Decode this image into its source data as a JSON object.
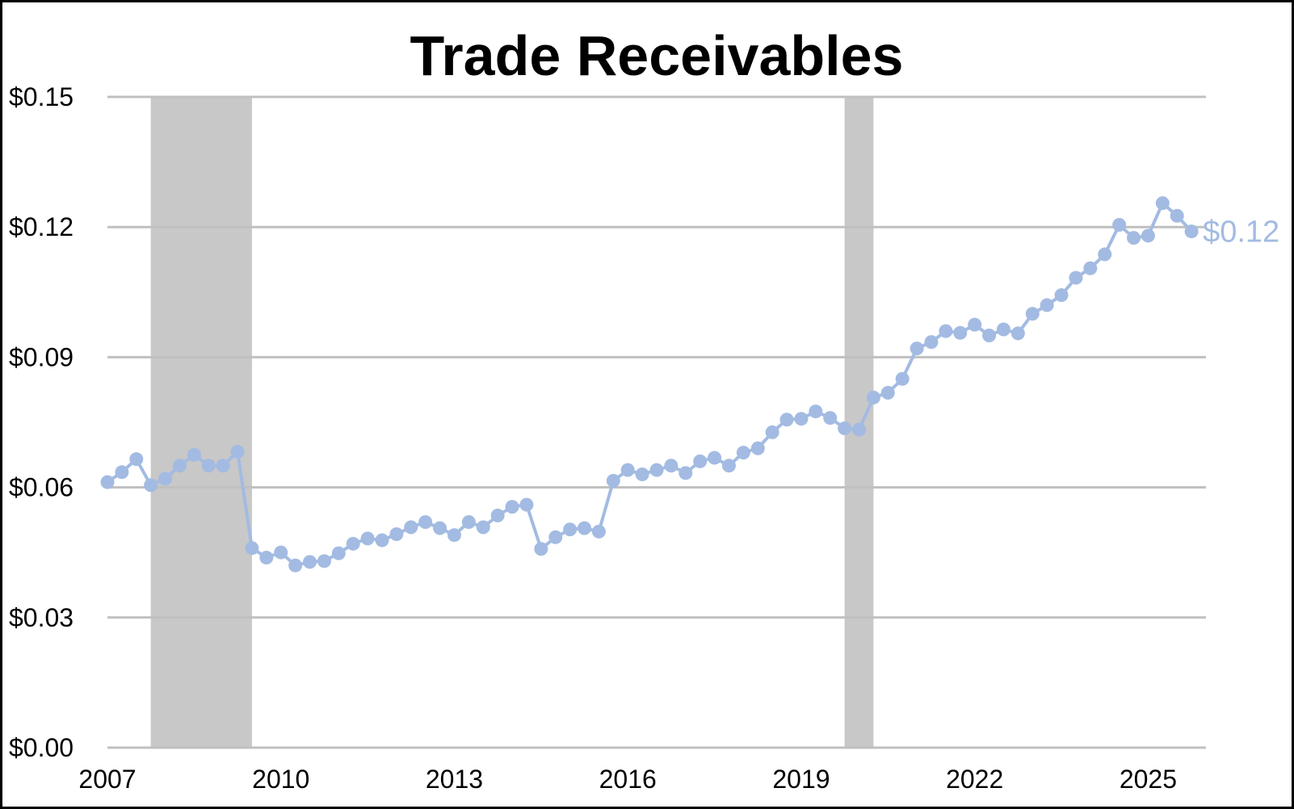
{
  "chart_data": {
    "type": "line",
    "title": "Trade Receivables",
    "xlabel": "",
    "ylabel": "",
    "ylim": [
      0,
      0.15
    ],
    "yticks": [
      0.0,
      0.03,
      0.06,
      0.09,
      0.12,
      0.15
    ],
    "ytick_labels": [
      "$0.00",
      "$0.03",
      "$0.06",
      "$0.09",
      "$0.12",
      "$0.15"
    ],
    "xlim": [
      2007.0,
      2026.0
    ],
    "xticks": [
      2007,
      2010,
      2013,
      2016,
      2019,
      2022,
      2025
    ],
    "xtick_labels": [
      "2007",
      "2010",
      "2013",
      "2016",
      "2019",
      "2022",
      "2025"
    ],
    "grid": "horizontal",
    "legend": "none",
    "recessions": [
      [
        2007.75,
        2009.5
      ],
      [
        2019.75,
        2020.25
      ]
    ],
    "series": [
      {
        "name": "",
        "color": "#a3bbe2",
        "end_label": "$0.12",
        "x": [
          2007.0,
          2007.25,
          2007.5,
          2007.75,
          2008.0,
          2008.25,
          2008.5,
          2008.75,
          2009.0,
          2009.25,
          2009.5,
          2009.75,
          2010.0,
          2010.25,
          2010.5,
          2010.75,
          2011.0,
          2011.25,
          2011.5,
          2011.75,
          2012.0,
          2012.25,
          2012.5,
          2012.75,
          2013.0,
          2013.25,
          2013.5,
          2013.75,
          2014.0,
          2014.25,
          2014.5,
          2014.75,
          2015.0,
          2015.25,
          2015.5,
          2015.75,
          2016.0,
          2016.25,
          2016.5,
          2016.75,
          2017.0,
          2017.25,
          2017.5,
          2017.75,
          2018.0,
          2018.25,
          2018.5,
          2018.75,
          2019.0,
          2019.25,
          2019.5,
          2019.75,
          2020.0,
          2020.25,
          2020.5,
          2020.75,
          2021.0,
          2021.25,
          2021.5,
          2021.75,
          2022.0,
          2022.25,
          2022.5,
          2022.75,
          2023.0,
          2023.25,
          2023.5,
          2023.75,
          2024.0,
          2024.25,
          2024.5,
          2024.75,
          2025.0,
          2025.25,
          2025.5,
          2025.75
        ],
        "values": [
          0.0612,
          0.0635,
          0.0665,
          0.0605,
          0.062,
          0.065,
          0.0675,
          0.065,
          0.065,
          0.0682,
          0.046,
          0.0438,
          0.045,
          0.042,
          0.0428,
          0.043,
          0.0448,
          0.047,
          0.0482,
          0.0478,
          0.0492,
          0.0508,
          0.052,
          0.0506,
          0.049,
          0.052,
          0.0508,
          0.0535,
          0.0555,
          0.056,
          0.0458,
          0.0485,
          0.0503,
          0.0506,
          0.0498,
          0.0615,
          0.064,
          0.063,
          0.064,
          0.065,
          0.0633,
          0.066,
          0.0668,
          0.065,
          0.068,
          0.069,
          0.0727,
          0.0756,
          0.0758,
          0.0775,
          0.076,
          0.0736,
          0.0733,
          0.0807,
          0.0818,
          0.085,
          0.092,
          0.0935,
          0.096,
          0.0956,
          0.0975,
          0.095,
          0.0964,
          0.0955,
          0.1,
          0.102,
          0.1043,
          0.1083,
          0.1105,
          0.1137,
          0.1205,
          0.1175,
          0.118,
          0.1255,
          0.1226,
          0.119
        ]
      }
    ]
  },
  "colors": {
    "line": "#a3bbe2",
    "recession_band": "#c8c8c8",
    "gridline": "#c0c0c0",
    "text": "#000000"
  }
}
